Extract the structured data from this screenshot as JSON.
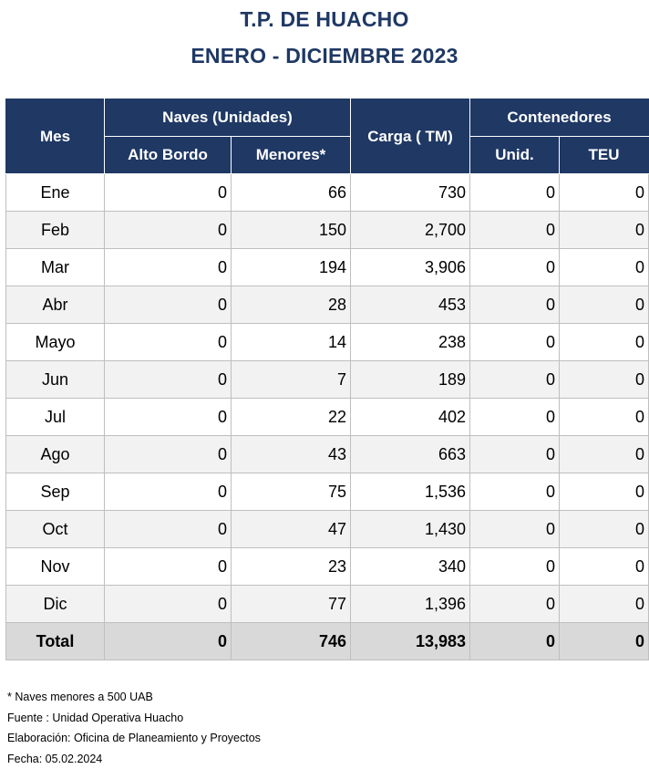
{
  "title_line1": "T.P. DE HUACHO",
  "title_line2": "ENERO - DICIEMBRE 2023",
  "headers": {
    "mes": "Mes",
    "naves": "Naves (Unidades)",
    "alto_bordo": "Alto Bordo",
    "menores": "Menores*",
    "carga": "Carga ( TM)",
    "contenedores": "Contenedores",
    "unid": "Unid.",
    "teu": "TEU"
  },
  "rows": [
    {
      "mes": "Ene",
      "alto": "0",
      "menores": "66",
      "carga": "730",
      "unid": "0",
      "teu": "0"
    },
    {
      "mes": "Feb",
      "alto": "0",
      "menores": "150",
      "carga": "2,700",
      "unid": "0",
      "teu": "0"
    },
    {
      "mes": "Mar",
      "alto": "0",
      "menores": "194",
      "carga": "3,906",
      "unid": "0",
      "teu": "0"
    },
    {
      "mes": "Abr",
      "alto": "0",
      "menores": "28",
      "carga": "453",
      "unid": "0",
      "teu": "0"
    },
    {
      "mes": "Mayo",
      "alto": "0",
      "menores": "14",
      "carga": "238",
      "unid": "0",
      "teu": "0"
    },
    {
      "mes": "Jun",
      "alto": "0",
      "menores": "7",
      "carga": "189",
      "unid": "0",
      "teu": "0"
    },
    {
      "mes": "Jul",
      "alto": "0",
      "menores": "22",
      "carga": "402",
      "unid": "0",
      "teu": "0"
    },
    {
      "mes": "Ago",
      "alto": "0",
      "menores": "43",
      "carga": "663",
      "unid": "0",
      "teu": "0"
    },
    {
      "mes": "Sep",
      "alto": "0",
      "menores": "75",
      "carga": "1,536",
      "unid": "0",
      "teu": "0"
    },
    {
      "mes": "Oct",
      "alto": "0",
      "menores": "47",
      "carga": "1,430",
      "unid": "0",
      "teu": "0"
    },
    {
      "mes": "Nov",
      "alto": "0",
      "menores": "23",
      "carga": "340",
      "unid": "0",
      "teu": "0"
    },
    {
      "mes": "Dic",
      "alto": "0",
      "menores": "77",
      "carga": "1,396",
      "unid": "0",
      "teu": "0"
    }
  ],
  "total": {
    "mes": "Total",
    "alto": "0",
    "menores": "746",
    "carga": "13,983",
    "unid": "0",
    "teu": "0"
  },
  "notes": [
    "* Naves menores a 500 UAB",
    "Fuente : Unidad Operativa Huacho",
    "Elaboración: Oficina de Planeamiento y Proyectos",
    "Fecha: 05.02.2024"
  ],
  "colors": {
    "header_bg": "#1f3864",
    "title": "#1f3864",
    "alt_row": "#f2f2f2",
    "total_row": "#d9d9d9"
  }
}
